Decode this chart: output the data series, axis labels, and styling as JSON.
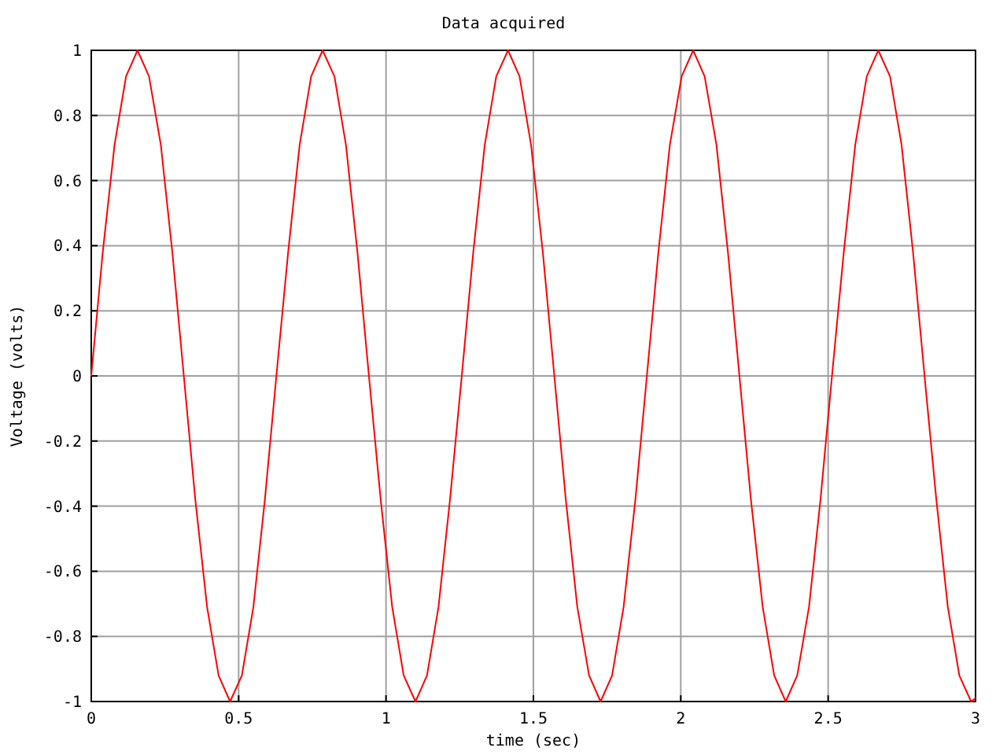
{
  "chart_data": {
    "type": "line",
    "title": "Data acquired",
    "xlabel": "time (sec)",
    "ylabel": "Voltage (volts)",
    "xlim": [
      0,
      3
    ],
    "xticks": [
      0,
      0.5,
      1,
      1.5,
      2,
      2.5,
      3
    ],
    "ylim": [
      -1,
      1
    ],
    "yticks": [
      -1,
      -0.8,
      -0.6,
      -0.4,
      -0.2,
      0,
      0.2,
      0.4,
      0.6,
      0.8,
      1
    ],
    "grid": true,
    "marker": "none",
    "line_style": "solid",
    "series": [
      {
        "color": "#ff0000",
        "x": [
          0,
          0.039,
          0.079,
          0.118,
          0.157,
          0.196,
          0.236,
          0.275,
          0.314,
          0.353,
          0.393,
          0.432,
          0.471,
          0.511,
          0.55,
          0.589,
          0.628,
          0.668,
          0.707,
          0.746,
          0.785,
          0.825,
          0.864,
          0.903,
          0.942,
          0.982,
          1.021,
          1.06,
          1.1,
          1.139,
          1.178,
          1.217,
          1.257,
          1.296,
          1.335,
          1.374,
          1.414,
          1.453,
          1.492,
          1.532,
          1.571,
          1.61,
          1.649,
          1.689,
          1.728,
          1.767,
          1.806,
          1.846,
          1.885,
          1.924,
          1.963,
          2.003,
          2.042,
          2.081,
          2.121,
          2.16,
          2.199,
          2.238,
          2.278,
          2.317,
          2.356,
          2.395,
          2.435,
          2.474,
          2.513,
          2.553,
          2.592,
          2.631,
          2.67,
          2.71,
          2.749,
          2.788,
          2.827,
          2.867,
          2.906,
          2.945,
          2.985,
          3
        ],
        "values": [
          0,
          0.38,
          0.71,
          0.92,
          1,
          0.92,
          0.71,
          0.38,
          0,
          -0.38,
          -0.71,
          -0.92,
          -1,
          -0.92,
          -0.71,
          -0.38,
          0,
          0.38,
          0.71,
          0.92,
          1,
          0.92,
          0.71,
          0.38,
          0,
          -0.38,
          -0.71,
          -0.92,
          -1,
          -0.92,
          -0.71,
          -0.38,
          0,
          0.38,
          0.71,
          0.92,
          1,
          0.92,
          0.71,
          0.38,
          0,
          -0.38,
          -0.71,
          -0.92,
          -1,
          -0.92,
          -0.71,
          -0.38,
          0,
          0.38,
          0.71,
          0.92,
          1,
          0.92,
          0.71,
          0.38,
          0,
          -0.38,
          -0.71,
          -0.92,
          -1,
          -0.92,
          -0.71,
          -0.38,
          0,
          0.38,
          0.71,
          0.92,
          1,
          0.92,
          0.71,
          0.38,
          0,
          -0.38,
          -0.71,
          -0.92,
          -1,
          -0.99
        ]
      }
    ]
  }
}
